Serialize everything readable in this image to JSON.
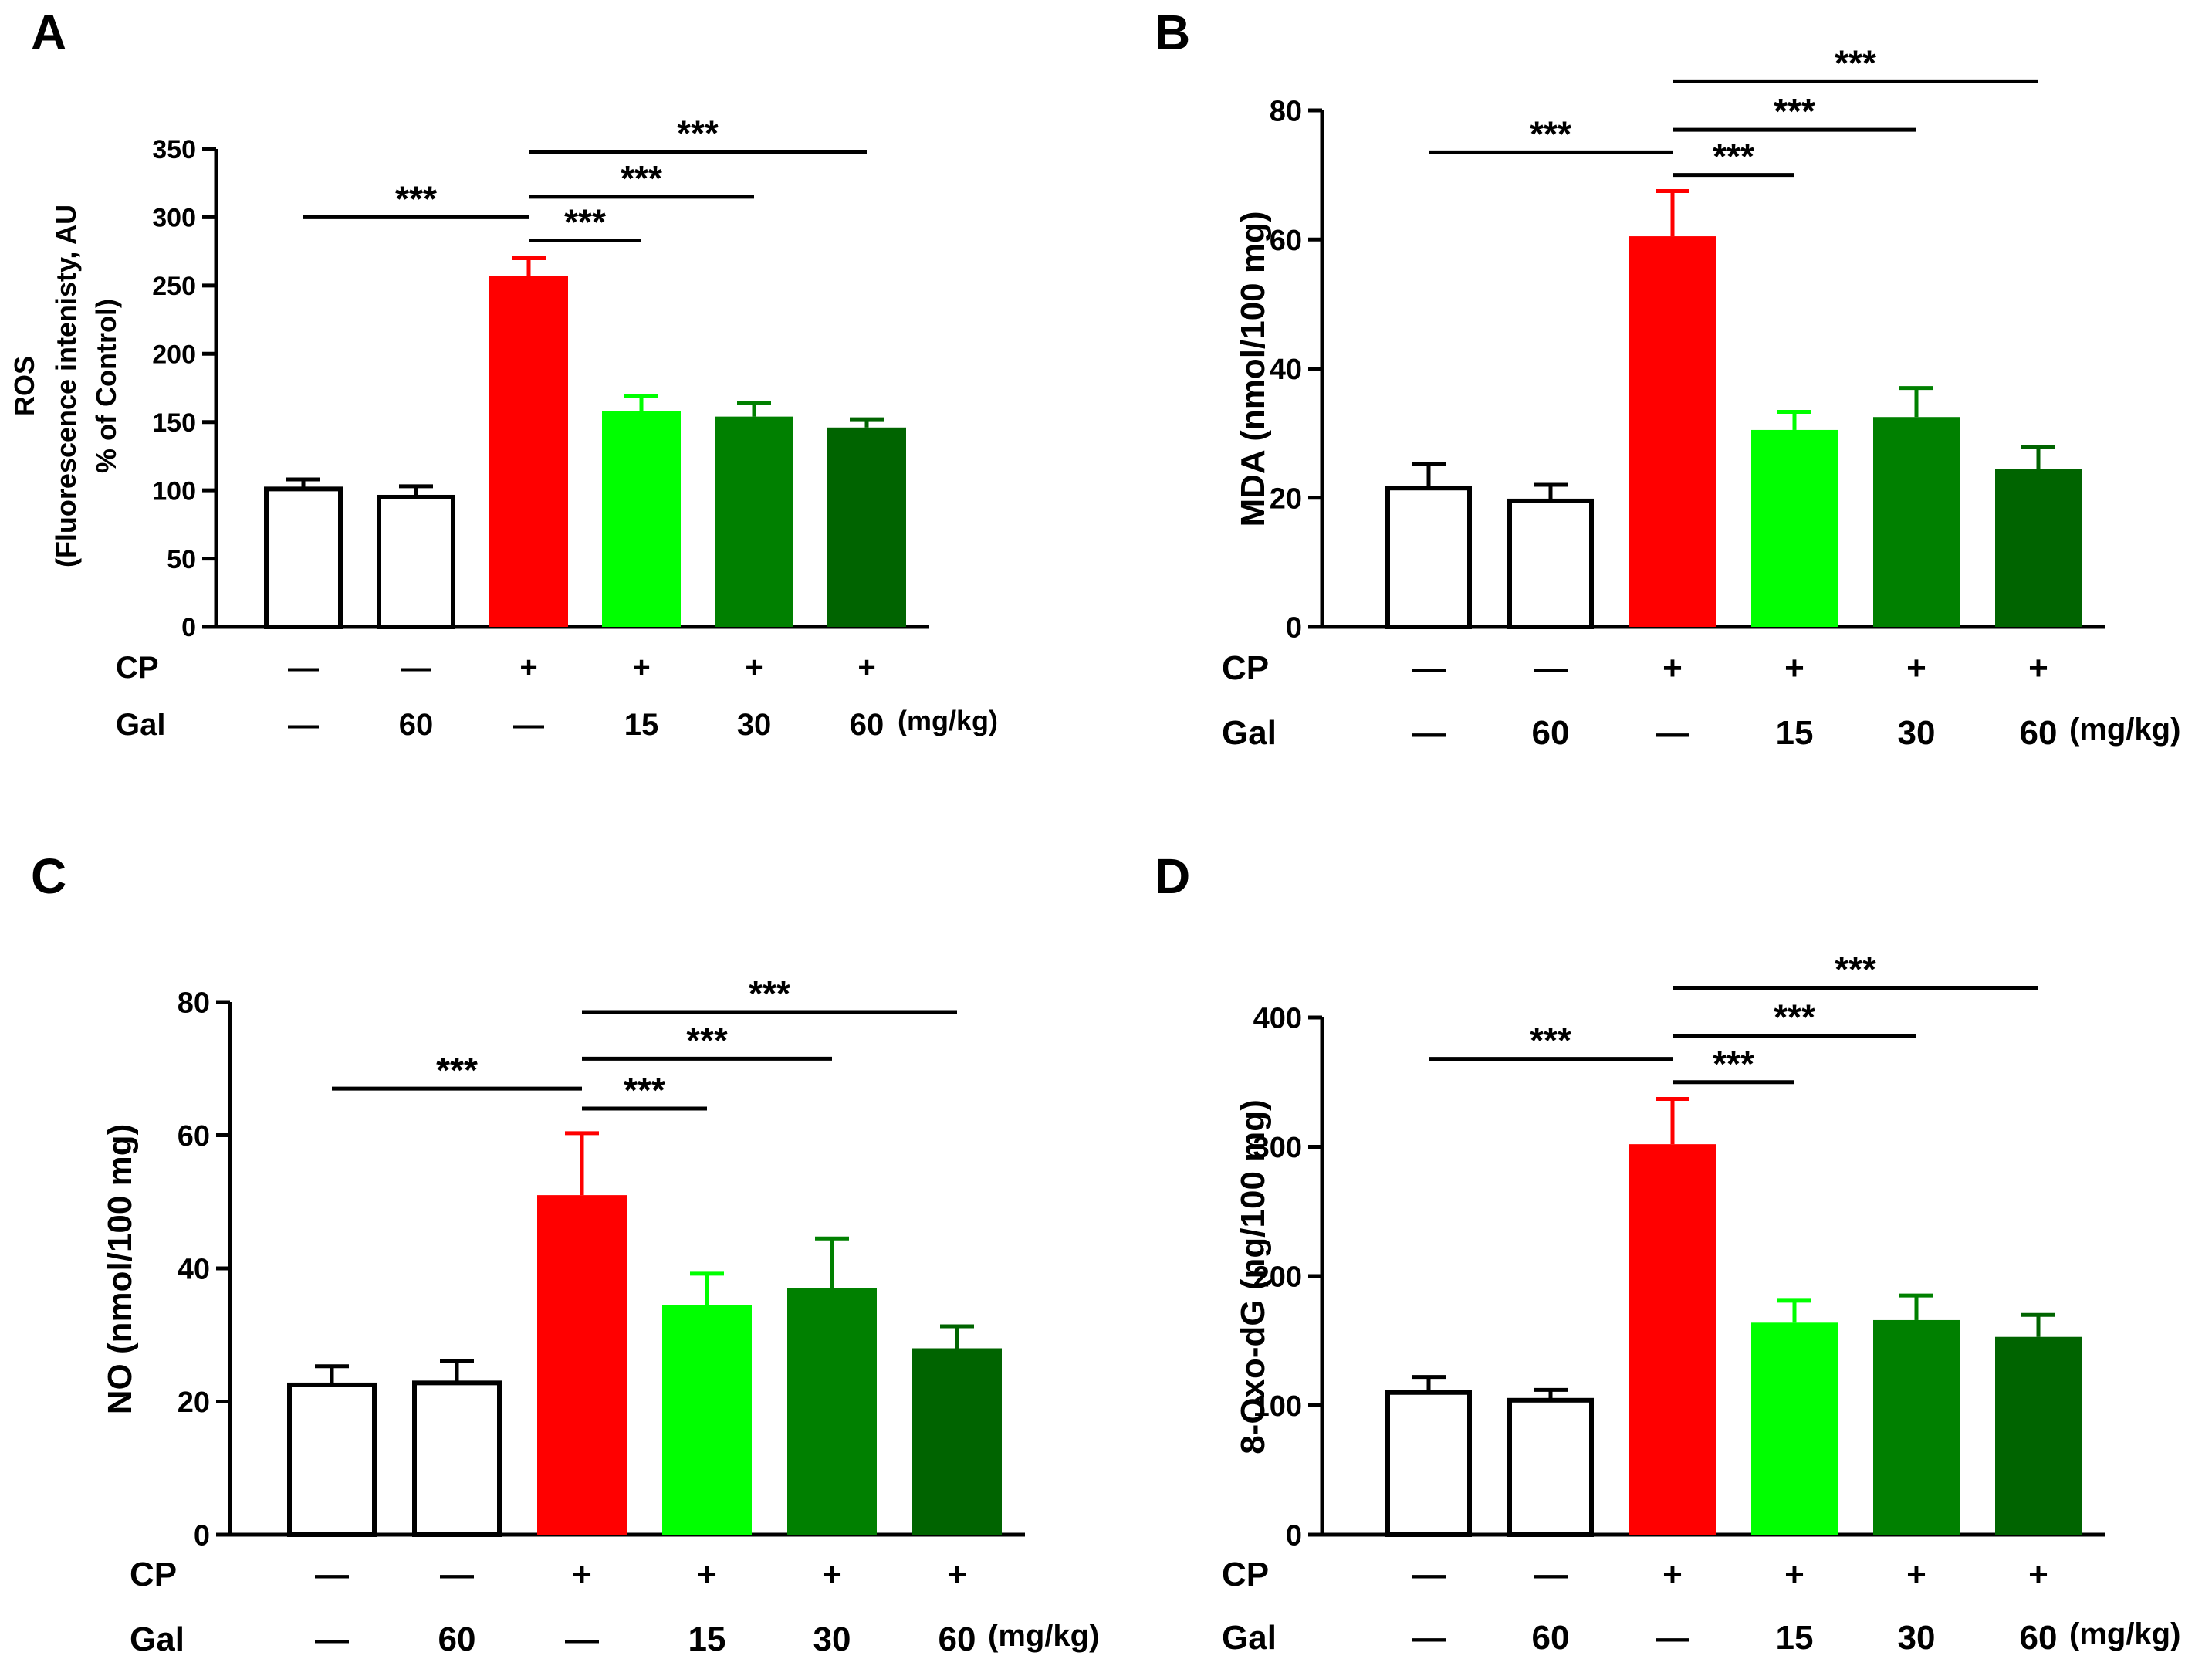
{
  "figure": {
    "condition_labels": {
      "cp": "CP",
      "gal": "Gal",
      "dash": "—",
      "unit": "(mg/kg)"
    },
    "cp_row": [
      "—",
      "—",
      "+",
      "+",
      "+",
      "+"
    ],
    "gal_row": [
      "—",
      "60",
      "—",
      "15",
      "30",
      "60"
    ],
    "colors": {
      "control": "#ffffff",
      "cp": "#ff0000",
      "gal15": "#00ff00",
      "gal30": "#008000",
      "gal60": "#006400",
      "outline": "#000000"
    }
  },
  "chart_data": [
    {
      "panel": "A",
      "type": "bar",
      "ylabel_lines": [
        "ROS",
        "(Fluorescence intenisty, AU",
        "% of Control)"
      ],
      "ylim": [
        0,
        350
      ],
      "yticks": [
        0,
        50,
        100,
        150,
        200,
        250,
        300,
        350
      ],
      "values": [
        101,
        95,
        257,
        158,
        154,
        146
      ],
      "errors": [
        7,
        8,
        13,
        11,
        10,
        6
      ],
      "significance": [
        {
          "from": 0,
          "to": 2,
          "y": 300,
          "label": "***"
        },
        {
          "from": 2,
          "to": 3,
          "y": 283,
          "label": "***"
        },
        {
          "from": 2,
          "to": 4,
          "y": 315,
          "label": "***"
        },
        {
          "from": 2,
          "to": 5,
          "y": 348,
          "label": "***"
        }
      ]
    },
    {
      "panel": "B",
      "type": "bar",
      "ylabel_lines": [
        "MDA (nmol/100 mg)"
      ],
      "ylim": [
        0,
        80
      ],
      "yticks": [
        0,
        20,
        40,
        60,
        80
      ],
      "values": [
        21.5,
        19.5,
        60.5,
        30.5,
        32.5,
        24.5
      ],
      "errors": [
        3.7,
        2.5,
        7,
        2.8,
        4.5,
        3.3
      ],
      "significance": [
        {
          "from": 0,
          "to": 2,
          "y": 73.5,
          "label": "***"
        },
        {
          "from": 2,
          "to": 3,
          "y": 70,
          "label": "***"
        },
        {
          "from": 2,
          "to": 4,
          "y": 77,
          "label": "***"
        },
        {
          "from": 2,
          "to": 5,
          "y": 84.5,
          "label": "***"
        }
      ]
    },
    {
      "panel": "C",
      "type": "bar",
      "ylabel_lines": [
        "NO (nmol/100 mg)"
      ],
      "ylim": [
        0,
        80
      ],
      "yticks": [
        0,
        20,
        40,
        60,
        80
      ],
      "values": [
        22.5,
        22.8,
        51,
        34.5,
        37,
        28
      ],
      "errors": [
        2.8,
        3.3,
        9.3,
        4.7,
        7.5,
        3.3
      ],
      "significance": [
        {
          "from": 0,
          "to": 2,
          "y": 67,
          "label": "***"
        },
        {
          "from": 2,
          "to": 3,
          "y": 64,
          "label": "***"
        },
        {
          "from": 2,
          "to": 4,
          "y": 71.5,
          "label": "***"
        },
        {
          "from": 2,
          "to": 5,
          "y": 78.5,
          "label": "***"
        }
      ]
    },
    {
      "panel": "D",
      "type": "bar",
      "ylabel_lines": [
        "8-Oxo-dG (ng/100 mg)"
      ],
      "ylim": [
        0,
        400
      ],
      "yticks": [
        0,
        100,
        200,
        300,
        400
      ],
      "values": [
        110,
        104,
        302,
        164,
        166,
        153
      ],
      "errors": [
        12,
        8,
        35,
        17,
        19,
        17
      ],
      "significance": [
        {
          "from": 0,
          "to": 2,
          "y": 368,
          "label": "***"
        },
        {
          "from": 2,
          "to": 3,
          "y": 350,
          "label": "***"
        },
        {
          "from": 2,
          "to": 4,
          "y": 386,
          "label": "***"
        },
        {
          "from": 2,
          "to": 5,
          "y": 423,
          "label": "***"
        }
      ]
    }
  ]
}
